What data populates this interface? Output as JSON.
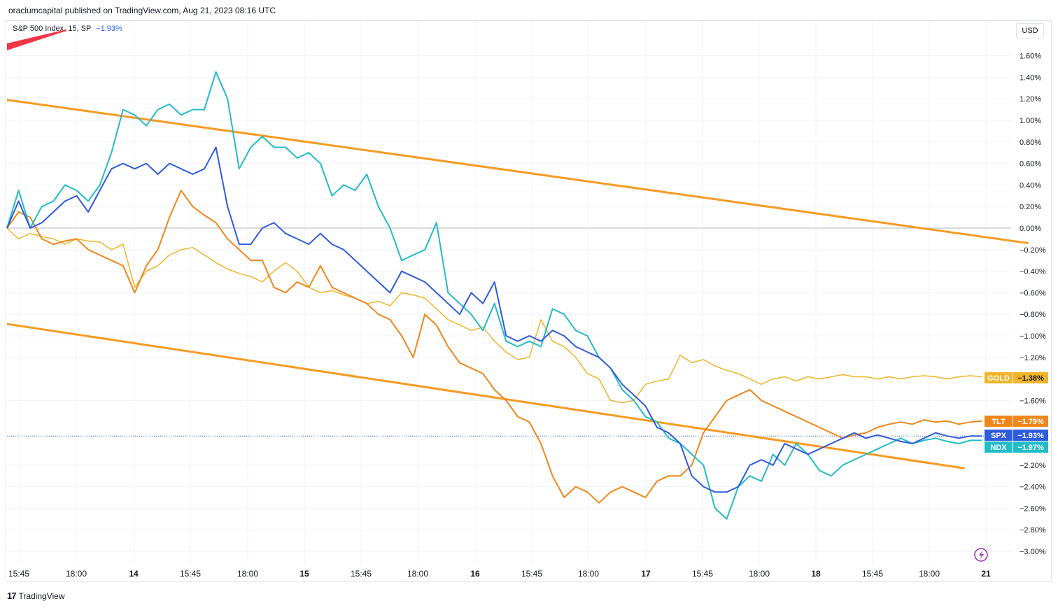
{
  "header": {
    "text": "oraclumcapital published on TradingView.com, Aug 21, 2023 08:16 UTC"
  },
  "legend": {
    "symbol": "S&P 500 Index, 15, SP",
    "change": "−1.93%"
  },
  "currency_button": "USD",
  "footer": {
    "logo": "17",
    "brand": "TradingView"
  },
  "colors": {
    "SPX": "#2f5bdd",
    "NDX": "#22bcc7",
    "TLT": "#f0861a",
    "GOLD": "#f0b429",
    "channel": "#f79a22"
  },
  "chart_data": {
    "type": "line",
    "yunit": "%",
    "ylim": [
      -3.1,
      1.75
    ],
    "x_ticks": [
      "15:45",
      "18:00",
      "14",
      "15:45",
      "18:00",
      "15",
      "15:45",
      "18:00",
      "16",
      "15:45",
      "18:00",
      "17",
      "15:45",
      "18:00",
      "18",
      "15:45",
      "18:00",
      "21"
    ],
    "y_ticks": [
      "1.60%",
      "1.40%",
      "1.20%",
      "1.00%",
      "0.80%",
      "0.60%",
      "0.40%",
      "0.20%",
      "0.00%",
      "−0.20%",
      "−0.40%",
      "−0.60%",
      "−0.80%",
      "−1.00%",
      "−1.20%",
      "−1.60%",
      "−2.20%",
      "−2.40%",
      "−2.60%",
      "−2.80%",
      "−3.00%"
    ],
    "series": [
      {
        "name": "GOLD",
        "label": "−1.38%",
        "last": -1.38,
        "x": [
          0,
          2,
          4,
          6,
          8,
          10,
          12,
          14,
          16,
          18,
          20,
          22,
          24,
          26,
          28,
          30,
          32,
          34,
          36,
          38,
          40,
          42,
          44,
          46,
          48,
          50,
          52,
          54,
          56,
          58,
          60,
          62,
          64,
          66,
          68,
          70,
          72,
          74,
          76,
          78,
          80,
          82,
          84,
          86,
          88,
          90,
          92,
          94,
          96,
          98,
          100,
          102,
          104,
          106,
          108,
          110,
          112,
          114,
          116,
          118,
          120,
          122,
          124,
          126,
          128,
          130,
          132,
          134,
          136,
          138,
          140,
          142,
          144,
          146,
          148,
          150,
          152,
          154,
          156,
          158,
          160,
          162,
          164,
          166,
          168
        ],
        "y": [
          0.0,
          -0.1,
          -0.05,
          -0.08,
          -0.1,
          -0.15,
          -0.1,
          -0.12,
          -0.13,
          -0.2,
          -0.15,
          -0.55,
          -0.4,
          -0.35,
          -0.25,
          -0.2,
          -0.18,
          -0.25,
          -0.32,
          -0.38,
          -0.42,
          -0.45,
          -0.5,
          -0.4,
          -0.32,
          -0.4,
          -0.55,
          -0.6,
          -0.58,
          -0.62,
          -0.65,
          -0.7,
          -0.68,
          -0.72,
          -0.6,
          -0.62,
          -0.65,
          -0.75,
          -0.85,
          -0.9,
          -0.95,
          -0.92,
          -1.05,
          -1.15,
          -1.22,
          -1.2,
          -0.85,
          -1.05,
          -1.1,
          -1.2,
          -1.35,
          -1.4,
          -1.6,
          -1.62,
          -1.6,
          -1.45,
          -1.42,
          -1.4,
          -1.18,
          -1.25,
          -1.22,
          -1.28,
          -1.32,
          -1.35,
          -1.4,
          -1.45,
          -1.4,
          -1.38,
          -1.42,
          -1.38,
          -1.4,
          -1.38,
          -1.36,
          -1.38,
          -1.38,
          -1.4,
          -1.38,
          -1.4,
          -1.38,
          -1.37,
          -1.38,
          -1.4,
          -1.38,
          -1.37,
          -1.38
        ]
      },
      {
        "name": "TLT",
        "label": "−1.79%",
        "last": -1.79,
        "x": [
          0,
          2,
          4,
          6,
          8,
          10,
          12,
          14,
          16,
          18,
          20,
          22,
          24,
          26,
          28,
          30,
          32,
          34,
          36,
          38,
          40,
          42,
          44,
          46,
          48,
          50,
          52,
          54,
          56,
          58,
          60,
          62,
          64,
          66,
          68,
          70,
          72,
          74,
          76,
          78,
          80,
          82,
          84,
          86,
          88,
          90,
          92,
          94,
          96,
          98,
          100,
          102,
          104,
          106,
          108,
          110,
          112,
          114,
          116,
          118,
          120,
          122,
          124,
          126,
          128,
          130,
          132,
          134,
          136,
          138,
          140,
          142,
          144,
          146,
          148,
          150,
          152,
          154,
          156,
          158,
          160,
          162,
          164,
          166,
          168
        ],
        "y": [
          0.0,
          0.15,
          0.1,
          -0.1,
          -0.15,
          -0.12,
          -0.1,
          -0.2,
          -0.25,
          -0.3,
          -0.35,
          -0.6,
          -0.35,
          -0.2,
          0.1,
          0.35,
          0.2,
          0.12,
          0.05,
          -0.1,
          -0.2,
          -0.3,
          -0.3,
          -0.55,
          -0.6,
          -0.5,
          -0.55,
          -0.35,
          -0.55,
          -0.6,
          -0.65,
          -0.7,
          -0.8,
          -0.85,
          -1.0,
          -1.2,
          -0.8,
          -0.9,
          -1.1,
          -1.25,
          -1.3,
          -1.35,
          -1.5,
          -1.6,
          -1.75,
          -1.8,
          -2.0,
          -2.3,
          -2.5,
          -2.4,
          -2.45,
          -2.55,
          -2.45,
          -2.4,
          -2.45,
          -2.5,
          -2.35,
          -2.3,
          -2.3,
          -2.2,
          -1.9,
          -1.75,
          -1.6,
          -1.55,
          -1.5,
          -1.6,
          -1.65,
          -1.7,
          -1.75,
          -1.8,
          -1.85,
          -1.9,
          -1.95,
          -1.92,
          -1.9,
          -1.85,
          -1.82,
          -1.8,
          -1.82,
          -1.78,
          -1.8,
          -1.79,
          -1.82,
          -1.8,
          -1.79
        ]
      },
      {
        "name": "NDX",
        "label": "−1.97%",
        "last": -1.97,
        "x": [
          0,
          2,
          4,
          6,
          8,
          10,
          12,
          14,
          16,
          18,
          20,
          22,
          24,
          26,
          28,
          30,
          32,
          34,
          36,
          38,
          40,
          42,
          44,
          46,
          48,
          50,
          52,
          54,
          56,
          58,
          60,
          62,
          64,
          66,
          68,
          70,
          72,
          74,
          76,
          78,
          80,
          82,
          84,
          86,
          88,
          90,
          92,
          94,
          96,
          98,
          100,
          102,
          104,
          106,
          108,
          110,
          112,
          114,
          116,
          118,
          120,
          122,
          124,
          126,
          128,
          130,
          132,
          134,
          136,
          138,
          140,
          142,
          144,
          146,
          148,
          150,
          152,
          154,
          156,
          158,
          160,
          162,
          164,
          166,
          168
        ],
        "y": [
          0.0,
          0.35,
          0.0,
          0.2,
          0.25,
          0.4,
          0.35,
          0.25,
          0.4,
          0.7,
          1.1,
          1.05,
          0.95,
          1.1,
          1.15,
          1.05,
          1.1,
          1.1,
          1.45,
          1.2,
          0.55,
          0.75,
          0.85,
          0.75,
          0.75,
          0.65,
          0.7,
          0.6,
          0.3,
          0.4,
          0.35,
          0.5,
          0.2,
          0.0,
          -0.3,
          -0.25,
          -0.2,
          0.05,
          -0.6,
          -0.7,
          -0.8,
          -0.95,
          -0.7,
          -1.05,
          -1.1,
          -1.05,
          -1.1,
          -0.75,
          -0.8,
          -0.95,
          -1.0,
          -1.2,
          -1.3,
          -1.5,
          -1.6,
          -1.75,
          -1.8,
          -1.95,
          -2.0,
          -2.1,
          -2.2,
          -2.6,
          -2.7,
          -2.4,
          -2.3,
          -2.35,
          -2.1,
          -2.2,
          -2.0,
          -2.1,
          -2.25,
          -2.3,
          -2.2,
          -2.15,
          -2.1,
          -2.05,
          -2.0,
          -1.95,
          -2.0,
          -1.97,
          -1.95,
          -1.98,
          -2.0,
          -1.97,
          -1.97
        ]
      },
      {
        "name": "SPX",
        "label": "−1.93%",
        "last": -1.93,
        "x": [
          0,
          2,
          4,
          6,
          8,
          10,
          12,
          14,
          16,
          18,
          20,
          22,
          24,
          26,
          28,
          30,
          32,
          34,
          36,
          38,
          40,
          42,
          44,
          46,
          48,
          50,
          52,
          54,
          56,
          58,
          60,
          62,
          64,
          66,
          68,
          70,
          72,
          74,
          76,
          78,
          80,
          82,
          84,
          86,
          88,
          90,
          92,
          94,
          96,
          98,
          100,
          102,
          104,
          106,
          108,
          110,
          112,
          114,
          116,
          118,
          120,
          122,
          124,
          126,
          128,
          130,
          132,
          134,
          136,
          138,
          140,
          142,
          144,
          146,
          148,
          150,
          152,
          154,
          156,
          158,
          160,
          162,
          164,
          166,
          168
        ],
        "y": [
          0.0,
          0.25,
          0.0,
          0.05,
          0.15,
          0.25,
          0.3,
          0.15,
          0.35,
          0.55,
          0.6,
          0.55,
          0.6,
          0.5,
          0.6,
          0.55,
          0.5,
          0.55,
          0.75,
          0.2,
          -0.15,
          -0.15,
          0.0,
          0.05,
          -0.05,
          -0.1,
          -0.15,
          -0.05,
          -0.15,
          -0.2,
          -0.3,
          -0.4,
          -0.5,
          -0.6,
          -0.4,
          -0.45,
          -0.5,
          -0.6,
          -0.7,
          -0.8,
          -0.6,
          -0.7,
          -0.5,
          -1.0,
          -1.05,
          -1.0,
          -1.05,
          -0.95,
          -1.0,
          -1.1,
          -1.15,
          -1.2,
          -1.3,
          -1.45,
          -1.55,
          -1.65,
          -1.85,
          -1.9,
          -2.0,
          -2.3,
          -2.4,
          -2.45,
          -2.45,
          -2.4,
          -2.2,
          -2.15,
          -2.2,
          -2.0,
          -2.05,
          -2.1,
          -2.05,
          -2.0,
          -1.95,
          -1.9,
          -1.95,
          -1.92,
          -1.95,
          -1.98,
          -2.0,
          -1.95,
          -1.9,
          -1.93,
          -1.95,
          -1.93,
          -1.93
        ]
      }
    ],
    "channel_lines": [
      {
        "name": "upper",
        "x": [
          0,
          176
        ],
        "y": [
          1.19,
          -0.14
        ]
      },
      {
        "name": "lower",
        "x": [
          0,
          165
        ],
        "y": [
          -0.89,
          -2.23
        ]
      }
    ],
    "zero_line": 0.0,
    "current_price_line": -1.93,
    "xlim": [
      0,
      170
    ]
  }
}
